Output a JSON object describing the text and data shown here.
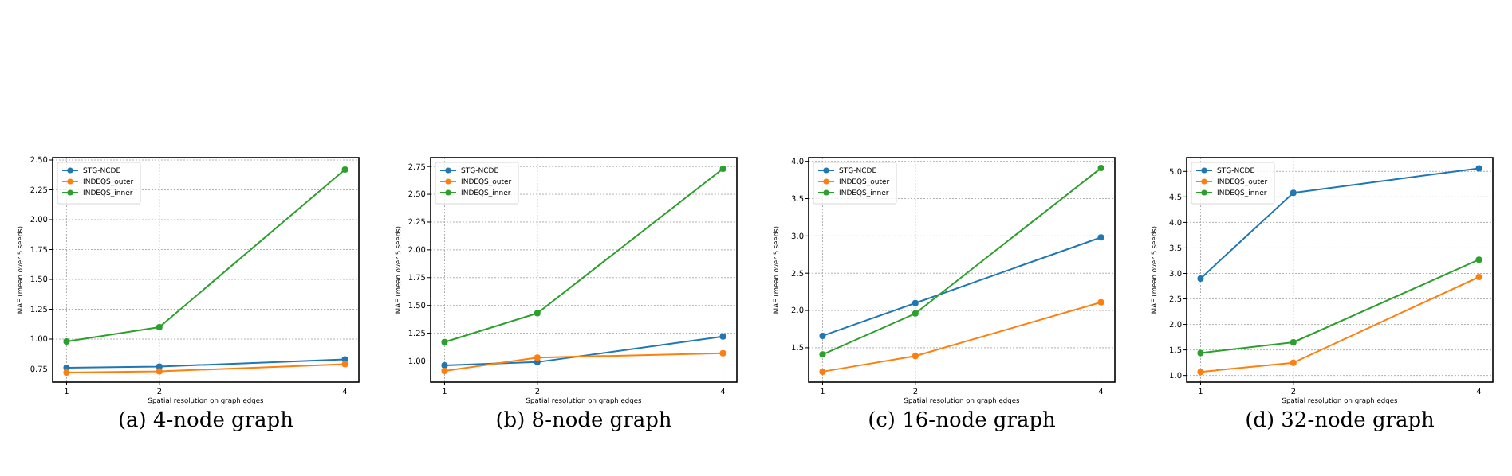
{
  "chart_data": [
    {
      "type": "line",
      "xlabel": "Spatial resolution on graph edges",
      "ylabel": "MAE (mean over 5 seeds)",
      "x": [
        1,
        2,
        4
      ],
      "xlim": [
        0.85,
        4.15
      ],
      "xticks": [
        1,
        2,
        4
      ],
      "ylim": [
        0.64,
        2.52
      ],
      "yticks": [
        {
          "value": 0.75,
          "label": "0.75"
        },
        {
          "value": 1,
          "label": "1.00"
        },
        {
          "value": 1.25,
          "label": "1.25"
        },
        {
          "value": 1.5,
          "label": "1.50"
        },
        {
          "value": 1.75,
          "label": "1.75"
        },
        {
          "value": 2,
          "label": "2.00"
        },
        {
          "value": 2.25,
          "label": "2.25"
        },
        {
          "value": 2.5,
          "label": "2.50"
        }
      ],
      "grid": true,
      "legend": "top left",
      "marker": "circle",
      "annotations": [
        "(a) 4-node graph"
      ],
      "series": [
        {
          "name": "STG-NCDE",
          "color": "#1f77b4",
          "values": [
            0.76,
            0.77,
            0.83
          ]
        },
        {
          "name": "INDEQS_outer",
          "color": "#ff7f0e",
          "values": [
            0.72,
            0.73,
            0.79
          ]
        },
        {
          "name": "INDEQS_inner",
          "color": "#2ca02c",
          "values": [
            0.98,
            1.1,
            2.42
          ]
        }
      ]
    },
    {
      "type": "line",
      "xlabel": "Spatial resolution on graph edges",
      "ylabel": "MAE (mean over 5 seeds)",
      "x": [
        1,
        2,
        4
      ],
      "xlim": [
        0.85,
        4.15
      ],
      "xticks": [
        1,
        2,
        4
      ],
      "ylim": [
        0.81,
        2.83
      ],
      "yticks": [
        {
          "value": 1,
          "label": "1.00"
        },
        {
          "value": 1.25,
          "label": "1.25"
        },
        {
          "value": 1.5,
          "label": "1.50"
        },
        {
          "value": 1.75,
          "label": "1.75"
        },
        {
          "value": 2,
          "label": "2.00"
        },
        {
          "value": 2.25,
          "label": "2.25"
        },
        {
          "value": 2.5,
          "label": "2.50"
        },
        {
          "value": 2.75,
          "label": "2.75"
        }
      ],
      "grid": true,
      "legend": "top left",
      "marker": "circle",
      "annotations": [
        "(b) 8-node graph"
      ],
      "series": [
        {
          "name": "STG-NCDE",
          "color": "#1f77b4",
          "values": [
            0.96,
            0.99,
            1.22
          ]
        },
        {
          "name": "INDEQS_outer",
          "color": "#ff7f0e",
          "values": [
            0.91,
            1.03,
            1.07
          ]
        },
        {
          "name": "INDEQS_inner",
          "color": "#2ca02c",
          "values": [
            1.17,
            1.43,
            2.73
          ]
        }
      ]
    },
    {
      "type": "line",
      "xlabel": "Spatial resolution on graph edges",
      "ylabel": "MAE (mean over 5 seeds)",
      "x": [
        1,
        2,
        4
      ],
      "xlim": [
        0.85,
        4.15
      ],
      "xticks": [
        1,
        2,
        4
      ],
      "ylim": [
        1.04,
        4.05
      ],
      "yticks": [
        {
          "value": 1.5,
          "label": "1.5"
        },
        {
          "value": 2,
          "label": "2.0"
        },
        {
          "value": 2.5,
          "label": "2.5"
        },
        {
          "value": 3,
          "label": "3.0"
        },
        {
          "value": 3.5,
          "label": "3.5"
        },
        {
          "value": 4,
          "label": "4.0"
        }
      ],
      "grid": true,
      "legend": "top left",
      "marker": "circle",
      "annotations": [
        "(c) 16-node graph"
      ],
      "series": [
        {
          "name": "STG-NCDE",
          "color": "#1f77b4",
          "values": [
            1.66,
            2.1,
            2.98
          ]
        },
        {
          "name": "INDEQS_outer",
          "color": "#ff7f0e",
          "values": [
            1.18,
            1.39,
            2.11
          ]
        },
        {
          "name": "INDEQS_inner",
          "color": "#2ca02c",
          "values": [
            1.41,
            1.96,
            3.91
          ]
        }
      ]
    },
    {
      "type": "line",
      "xlabel": "Spatial resolution on graph edges",
      "ylabel": "MAE (mean over 5 seeds)",
      "x": [
        1,
        2,
        4
      ],
      "xlim": [
        0.85,
        4.15
      ],
      "xticks": [
        1,
        2,
        4
      ],
      "ylim": [
        0.87,
        5.27
      ],
      "yticks": [
        {
          "value": 1,
          "label": "1.0"
        },
        {
          "value": 1.5,
          "label": "1.5"
        },
        {
          "value": 2,
          "label": "2.0"
        },
        {
          "value": 2.5,
          "label": "2.5"
        },
        {
          "value": 3,
          "label": "3.0"
        },
        {
          "value": 3.5,
          "label": "3.5"
        },
        {
          "value": 4,
          "label": "4.0"
        },
        {
          "value": 4.5,
          "label": "4.5"
        },
        {
          "value": 5,
          "label": "5.0"
        }
      ],
      "grid": true,
      "legend": "top left",
      "marker": "circle",
      "annotations": [
        "(d) 32-node graph"
      ],
      "series": [
        {
          "name": "STG-NCDE",
          "color": "#1f77b4",
          "values": [
            2.9,
            4.58,
            5.06
          ]
        },
        {
          "name": "INDEQS_outer",
          "color": "#ff7f0e",
          "values": [
            1.07,
            1.25,
            2.93
          ]
        },
        {
          "name": "INDEQS_inner",
          "color": "#2ca02c",
          "values": [
            1.44,
            1.65,
            3.27
          ]
        }
      ]
    }
  ]
}
